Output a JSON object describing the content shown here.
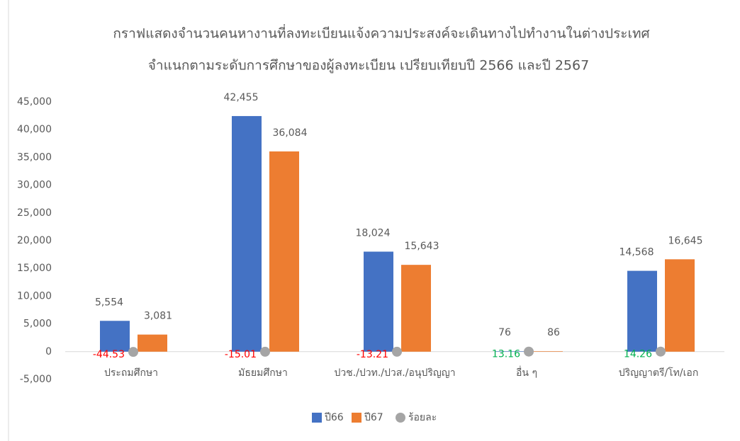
{
  "chart_data": {
    "type": "bar",
    "title": "กราฟแสดงจำนวนคนหางานที่ลงทะเบียนแจ้งความประสงค์จะเดินทางไปทำงานในต่างประเทศ",
    "subtitle": "จำแนกตามระดับการศึกษาของผู้ลงทะเบียน เปรียบเทียบปี 2566 และปี 2567",
    "categories": [
      "ประถมศึกษา",
      "มัธยมศึกษา",
      "ปวช./ปวท./ปวส./อนุปริญญา",
      "อื่น ๆ",
      "ปริญญาตรี/โท/เอก"
    ],
    "series": [
      {
        "name": "ปี66",
        "color": "#4472c4",
        "values": [
          5554,
          42455,
          18024,
          76,
          14568
        ],
        "value_labels": [
          "5,554",
          "42,455",
          "18,024",
          "76",
          "14,568"
        ]
      },
      {
        "name": "ปี67",
        "color": "#ed7d31",
        "values": [
          3081,
          36084,
          15643,
          86,
          16645
        ],
        "value_labels": [
          "3,081",
          "36,084",
          "15,643",
          "86",
          "16,645"
        ]
      },
      {
        "name": "ร้อยละ",
        "color": "#a5a5a5",
        "marker": "circle",
        "values": [
          -44.53,
          -15.01,
          -13.21,
          13.16,
          14.26
        ],
        "negative_label_color": "#ff0000",
        "positive_label_color": "#00b050"
      }
    ],
    "ylim": [
      -5000,
      45000
    ],
    "yticks": [
      {
        "value": -5000,
        "label": "-5,000"
      },
      0,
      {
        "value": 5000,
        "label": "5,000"
      },
      {
        "value": 10000,
        "label": "10,000"
      },
      {
        "value": 15000,
        "label": "15,000"
      },
      {
        "value": 20000,
        "label": "20,000"
      },
      {
        "value": 25000,
        "label": "25,000"
      },
      {
        "value": 30000,
        "label": "30,000"
      },
      {
        "value": 35000,
        "label": "35,000"
      },
      {
        "value": 40000,
        "label": "40,000"
      },
      {
        "value": 45000,
        "label": "45,000"
      }
    ],
    "grid": false,
    "legend": "bottom"
  }
}
